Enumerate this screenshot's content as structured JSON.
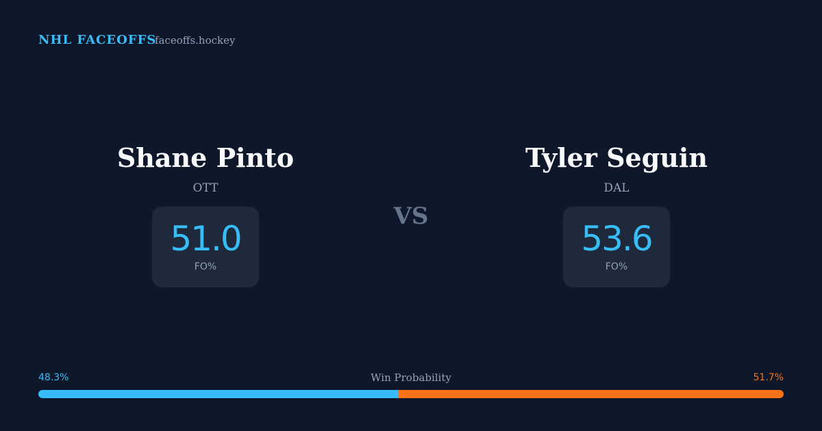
{
  "brand": {
    "title": "NHL FACEOFFS",
    "site": "faceoffs.hockey"
  },
  "players": [
    {
      "name": "Shane Pinto",
      "team": "OTT",
      "fo_pct": "51.0",
      "fo_label": "FO%"
    },
    {
      "name": "Tyler Seguin",
      "team": "DAL",
      "fo_pct": "53.6",
      "fo_label": "FO%"
    }
  ],
  "vs": "VS",
  "win_probability": {
    "title": "Win Probability",
    "left": {
      "value": 48.3,
      "label": "48.3%",
      "color": "#38bdf8"
    },
    "right": {
      "value": 51.7,
      "label": "51.7%",
      "color": "#f97316"
    }
  }
}
